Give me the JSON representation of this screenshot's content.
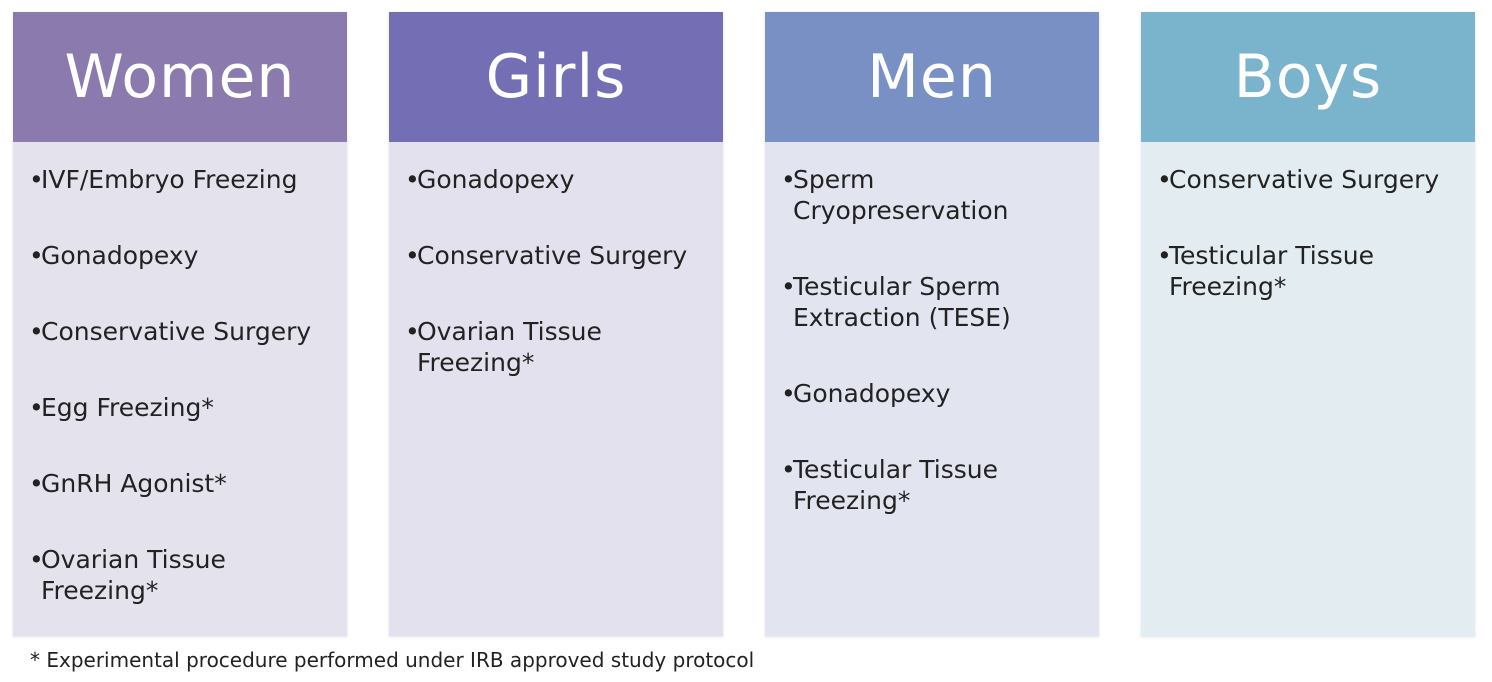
{
  "panels": [
    {
      "title": "Women",
      "header_color": "#8b7aad",
      "body_color": "#e4e2ec",
      "items": [
        "IVF/Embryo Freezing",
        "Gonadopexy",
        "Conservative Surgery",
        "Egg Freezing*",
        "GnRH Agonist*",
        "Ovarian Tissue Freezing*"
      ]
    },
    {
      "title": "Girls",
      "header_color": "#746fb4",
      "body_color": "#e2e1ed",
      "items": [
        "Gonadopexy",
        "Conservative Surgery",
        "Ovarian Tissue Freezing*"
      ]
    },
    {
      "title": "Men",
      "header_color": "#7890c4",
      "body_color": "#e2e5f0",
      "items": [
        "Sperm Cryopreservation",
        "Testicular Sperm Extraction (TESE)",
        "Gonadopexy",
        "Testicular Tissue Freezing*"
      ]
    },
    {
      "title": "Boys",
      "header_color": "#7ab3cc",
      "body_color": "#e3edf1",
      "items": [
        "Conservative Surgery",
        "Testicular Tissue Freezing*"
      ]
    }
  ],
  "footnote": "* Experimental procedure performed under IRB approved study protocol"
}
